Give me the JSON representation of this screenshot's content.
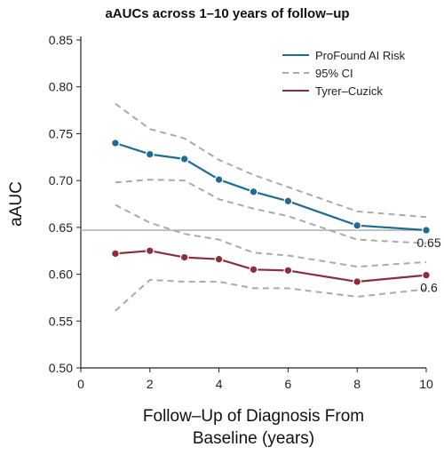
{
  "chart_data": {
    "type": "line",
    "title": "aAUCs across 1–10 years of follow–up",
    "ylabel": "aAUC",
    "xlabel_lines": [
      "Follow–Up of Diagnosis From",
      "Baseline (years)"
    ],
    "xlim": [
      0,
      10
    ],
    "ylim": [
      0.5,
      0.85
    ],
    "xticks": [
      0,
      2,
      4,
      6,
      8,
      10
    ],
    "yticks": [
      0.5,
      0.55,
      0.6,
      0.65,
      0.7,
      0.75,
      0.8,
      0.85
    ],
    "ytick_labels": [
      "0.50",
      "0.55",
      "0.60",
      "0.65",
      "0.70",
      "0.75",
      "0.80",
      "0.85"
    ],
    "grid": false,
    "legend_position": "top-right",
    "series": [
      {
        "name": "ProFound AI Risk",
        "color": "#1f6b93",
        "style": "solid-markers",
        "x": [
          1,
          2,
          3,
          4,
          5,
          6,
          8,
          10
        ],
        "y": [
          0.74,
          0.728,
          0.723,
          0.701,
          0.688,
          0.678,
          0.652,
          0.647
        ]
      },
      {
        "name": "95% CI",
        "color": "#aaaaaa",
        "style": "dashed",
        "x": [
          1,
          2,
          3,
          4,
          5,
          6,
          8,
          10
        ],
        "y": [
          0.782,
          0.755,
          0.745,
          0.722,
          0.706,
          0.693,
          0.667,
          0.661
        ]
      },
      {
        "name": "",
        "color": "#aaaaaa",
        "style": "dashed",
        "x": [
          1,
          2,
          3,
          4,
          5,
          6,
          8,
          10
        ],
        "y": [
          0.698,
          0.701,
          0.7,
          0.68,
          0.67,
          0.662,
          0.637,
          0.633
        ]
      },
      {
        "name": "Tyrer–Cuzick",
        "color": "#8c2f3c",
        "style": "solid-markers",
        "x": [
          1,
          2,
          3,
          4,
          5,
          6,
          8,
          10
        ],
        "y": [
          0.622,
          0.625,
          0.618,
          0.616,
          0.605,
          0.604,
          0.592,
          0.599
        ]
      },
      {
        "name": "",
        "color": "#aaaaaa",
        "style": "dashed",
        "x": [
          1,
          2,
          3,
          4,
          5,
          6,
          8,
          10
        ],
        "y": [
          0.674,
          0.655,
          0.643,
          0.637,
          0.623,
          0.62,
          0.608,
          0.613
        ]
      },
      {
        "name": "",
        "color": "#aaaaaa",
        "style": "dashed",
        "x": [
          1,
          2,
          3,
          4,
          5,
          6,
          8,
          10
        ],
        "y": [
          0.561,
          0.594,
          0.592,
          0.592,
          0.585,
          0.585,
          0.576,
          0.584
        ]
      }
    ],
    "reference_line": {
      "y": 0.647,
      "color": "#b5b5b5"
    },
    "annotations": [
      {
        "text": "0.65",
        "x": 10,
        "y": 0.647
      },
      {
        "text": "0.6",
        "x": 10,
        "y": 0.599
      }
    ]
  }
}
